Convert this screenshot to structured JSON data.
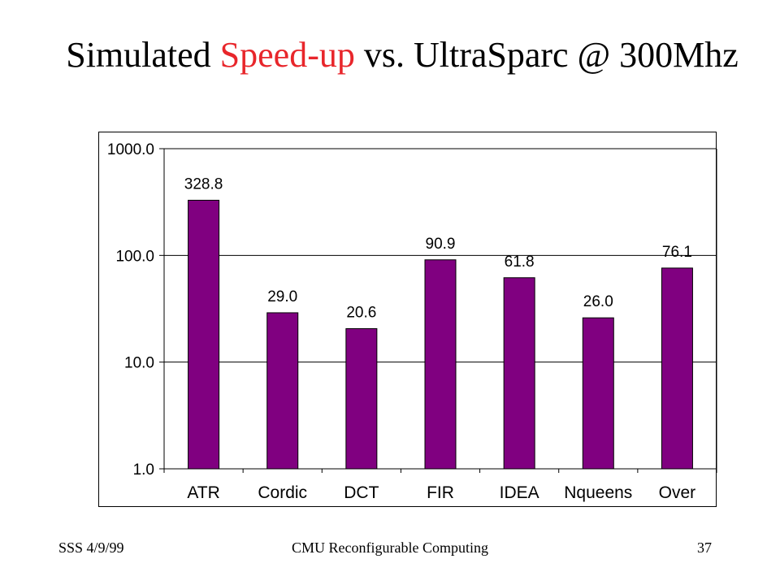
{
  "slide": {
    "title_part1": "Simulated ",
    "title_accent": "Speed-up",
    "title_part2": " vs. UltraSparc @ 300Mhz",
    "accent_color": "#e8262b"
  },
  "footer": {
    "left": "SSS 4/9/99",
    "center": "CMU Reconfigurable Computing",
    "right": "37"
  },
  "chart_data": {
    "type": "bar",
    "yscale": "log",
    "ylim": [
      1,
      1000
    ],
    "yticks": [
      "1.0",
      "10.0",
      "100.0",
      "1000.0"
    ],
    "grid": "horizontal",
    "bar_color": "#800080",
    "categories": [
      "ATR",
      "Cordic",
      "DCT",
      "FIR",
      "IDEA",
      "Nqueens",
      "Over"
    ],
    "values": [
      328.8,
      29.0,
      20.6,
      90.9,
      61.8,
      26.0,
      76.1
    ],
    "data_labels": [
      "328.8",
      "29.0",
      "20.6",
      "90.9",
      "61.8",
      "26.0",
      "76.1"
    ]
  }
}
